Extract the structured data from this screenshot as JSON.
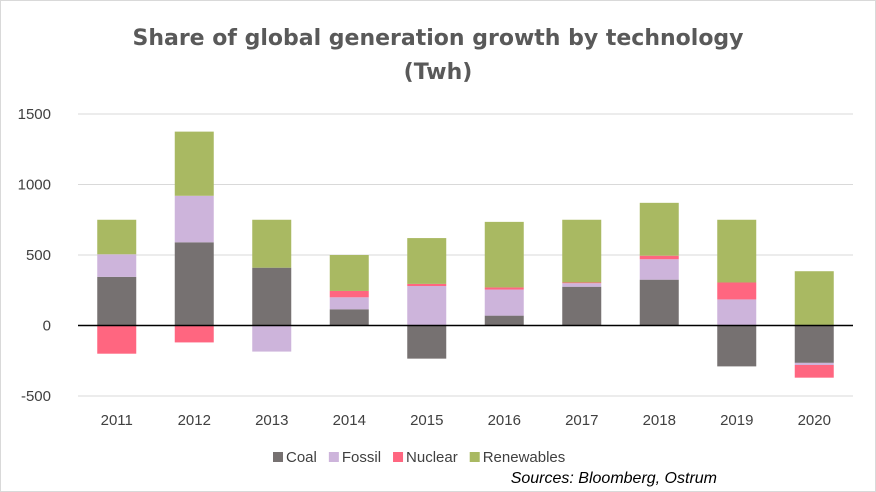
{
  "chart_data": {
    "type": "bar",
    "stacked": true,
    "title": "Share of global generation growth by technology",
    "subtitle": "(Twh)",
    "categories": [
      "2011",
      "2012",
      "2013",
      "2014",
      "2015",
      "2016",
      "2017",
      "2018",
      "2019",
      "2020"
    ],
    "ylim": [
      -500,
      1500
    ],
    "yticks": [
      -500,
      0,
      500,
      1000,
      1500
    ],
    "grid": true,
    "legend_position": "bottom",
    "series": [
      {
        "name": "Coal",
        "color": "#767171",
        "values": [
          345,
          590,
          410,
          115,
          -235,
          70,
          275,
          325,
          -290,
          -265
        ]
      },
      {
        "name": "Fossil",
        "color": "#cdb4db",
        "values": [
          160,
          330,
          -185,
          85,
          280,
          185,
          25,
          145,
          185,
          -15
        ]
      },
      {
        "name": "Nuclear",
        "color": "#ff6680",
        "values": [
          -200,
          -120,
          0,
          45,
          15,
          15,
          5,
          25,
          120,
          -90
        ]
      },
      {
        "name": "Renewables",
        "color": "#a9b962",
        "values": [
          245,
          455,
          340,
          255,
          325,
          465,
          445,
          375,
          445,
          385
        ]
      }
    ],
    "source": "Sources: Bloomberg, Ostrum"
  }
}
